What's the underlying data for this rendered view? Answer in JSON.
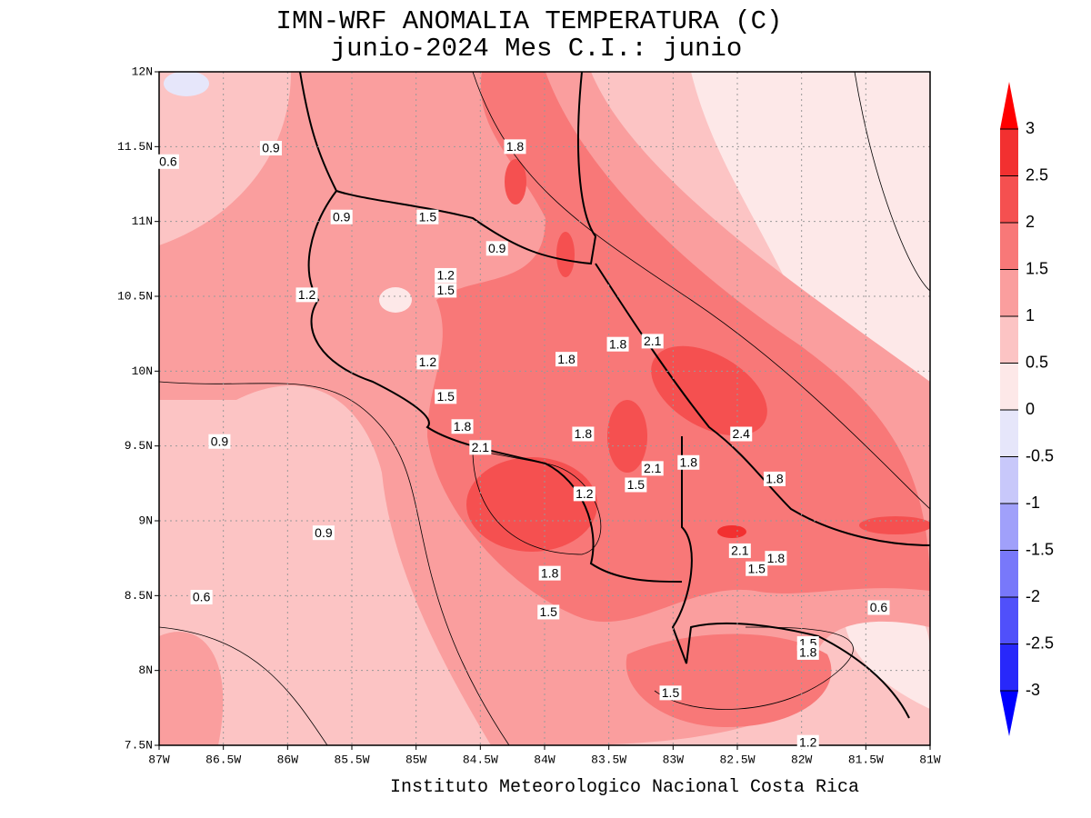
{
  "title": [
    "IMN-WRF  ANOMALIA TEMPERATURA (C)",
    "junio-2024 Mes C.I.: junio"
  ],
  "map": {
    "xlim": [
      -87,
      -81
    ],
    "ylim": [
      7.5,
      12
    ],
    "xticks": [
      {
        "value": -87,
        "label": "87W"
      },
      {
        "value": -86.5,
        "label": "86.5W"
      },
      {
        "value": -86,
        "label": "86W"
      },
      {
        "value": -85.5,
        "label": "85.5W"
      },
      {
        "value": -85,
        "label": "85W"
      },
      {
        "value": -84.5,
        "label": "84.5W"
      },
      {
        "value": -84,
        "label": "84W"
      },
      {
        "value": -83.5,
        "label": "83.5W"
      },
      {
        "value": -83,
        "label": "83W"
      },
      {
        "value": -82.5,
        "label": "82.5W"
      },
      {
        "value": -82,
        "label": "82W"
      },
      {
        "value": -81.5,
        "label": "81.5W"
      },
      {
        "value": -81,
        "label": "81W"
      }
    ],
    "yticks": [
      {
        "value": 7.5,
        "label": "7.5N"
      },
      {
        "value": 8,
        "label": "8N"
      },
      {
        "value": 8.5,
        "label": "8.5N"
      },
      {
        "value": 9,
        "label": "9N"
      },
      {
        "value": 9.5,
        "label": "9.5N"
      },
      {
        "value": 10,
        "label": "10N"
      },
      {
        "value": 10.5,
        "label": "10.5N"
      },
      {
        "value": 11,
        "label": "11N"
      },
      {
        "value": 11.5,
        "label": "11.5N"
      },
      {
        "value": 12,
        "label": "12N"
      }
    ],
    "contour_labels": [
      {
        "value": 0.9,
        "lon": -86.13,
        "lat": 11.49
      },
      {
        "value": 0.6,
        "lon": -86.93,
        "lat": 11.4
      },
      {
        "value": 1.8,
        "lon": -84.23,
        "lat": 11.5
      },
      {
        "value": 0.9,
        "lon": -85.58,
        "lat": 11.03
      },
      {
        "value": 1.5,
        "lon": -84.91,
        "lat": 11.03
      },
      {
        "value": 0.9,
        "lon": -84.37,
        "lat": 10.82
      },
      {
        "value": 1.2,
        "lon": -84.77,
        "lat": 10.64
      },
      {
        "value": 1.5,
        "lon": -84.77,
        "lat": 10.54
      },
      {
        "value": 1.2,
        "lon": -85.85,
        "lat": 10.51
      },
      {
        "value": 1.8,
        "lon": -83.43,
        "lat": 10.18
      },
      {
        "value": 2.1,
        "lon": -83.16,
        "lat": 10.2
      },
      {
        "value": 1.8,
        "lon": -83.83,
        "lat": 10.08
      },
      {
        "value": 1.2,
        "lon": -84.91,
        "lat": 10.06
      },
      {
        "value": 1.5,
        "lon": -84.77,
        "lat": 9.83
      },
      {
        "value": 1.8,
        "lon": -84.64,
        "lat": 9.63
      },
      {
        "value": 1.8,
        "lon": -83.7,
        "lat": 9.58
      },
      {
        "value": 2.4,
        "lon": -82.47,
        "lat": 9.58
      },
      {
        "value": 2.1,
        "lon": -84.5,
        "lat": 9.49
      },
      {
        "value": 0.9,
        "lon": -86.53,
        "lat": 9.53
      },
      {
        "value": 1.8,
        "lon": -82.88,
        "lat": 9.39
      },
      {
        "value": 2.1,
        "lon": -83.16,
        "lat": 9.35
      },
      {
        "value": 1.5,
        "lon": -83.29,
        "lat": 9.24
      },
      {
        "value": 1.8,
        "lon": -82.21,
        "lat": 9.28
      },
      {
        "value": 1.2,
        "lon": -83.69,
        "lat": 9.18
      },
      {
        "value": 0.9,
        "lon": -85.72,
        "lat": 8.92
      },
      {
        "value": 2.1,
        "lon": -82.48,
        "lat": 8.8
      },
      {
        "value": 1.8,
        "lon": -82.2,
        "lat": 8.75
      },
      {
        "value": 1.5,
        "lon": -82.35,
        "lat": 8.68
      },
      {
        "value": 1.8,
        "lon": -83.96,
        "lat": 8.65
      },
      {
        "value": 0.6,
        "lon": -86.67,
        "lat": 8.49
      },
      {
        "value": 0.6,
        "lon": -81.4,
        "lat": 8.42
      },
      {
        "value": 1.5,
        "lon": -83.97,
        "lat": 8.39
      },
      {
        "value": 1.5,
        "lon": -81.95,
        "lat": 8.18
      },
      {
        "value": 1.8,
        "lon": -81.95,
        "lat": 8.12
      },
      {
        "value": 1.5,
        "lon": -83.02,
        "lat": 7.85
      },
      {
        "value": 1.2,
        "lon": -81.95,
        "lat": 7.52
      }
    ],
    "colorbar": {
      "levels": [
        -3,
        -2.5,
        -2,
        -1.5,
        -1,
        -0.5,
        0,
        0.5,
        1,
        1.5,
        2,
        2.5,
        3
      ],
      "colors": [
        "#0000ff",
        "#2828fa",
        "#5050fa",
        "#7878fa",
        "#a0a0fa",
        "#c8c8fa",
        "#e6e6fa",
        "#fde8e8",
        "#fcc4c4",
        "#fa9e9e",
        "#f87878",
        "#f55050",
        "#f23030",
        "#ff0000"
      ]
    }
  },
  "footer": "Instituto Meteorologico Nacional Costa Rica"
}
